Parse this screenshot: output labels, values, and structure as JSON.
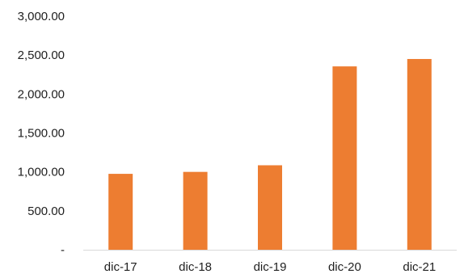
{
  "chart_data": {
    "type": "bar",
    "categories": [
      "dic-17",
      "dic-18",
      "dic-19",
      "dic-20",
      "dic-21"
    ],
    "values": [
      975,
      1000,
      1085,
      2355,
      2450
    ],
    "y_tick_labels": [
      "-",
      "500.00",
      "1,000.00",
      "1,500.00",
      "2,000.00",
      "2,500.00",
      "3,000.00"
    ],
    "ylim": [
      0,
      3000
    ],
    "grid": false,
    "legend": "none",
    "bar_color": "#ED7D31",
    "axis_color": "#D9D9D9"
  }
}
